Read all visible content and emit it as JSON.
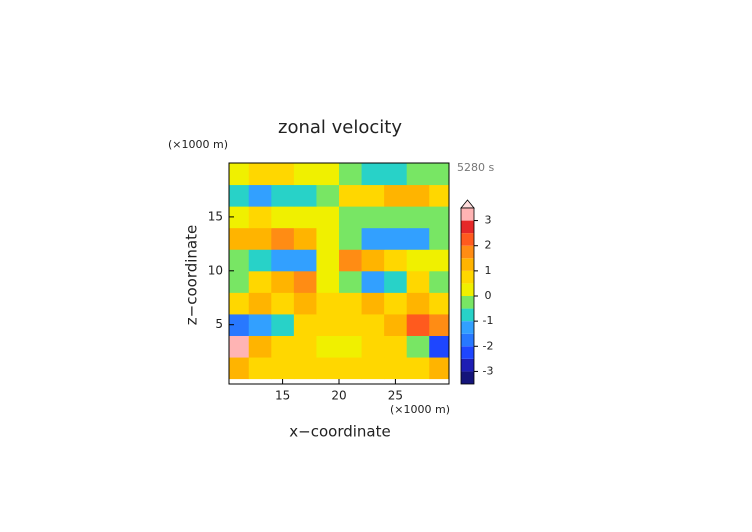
{
  "chart_data": {
    "type": "contour",
    "title": "zonal velocity",
    "subtitle": "5280 s",
    "x_label": "x−coordinate",
    "y_label": "z−coordinate",
    "x_unit": "(×1000 m)",
    "y_unit": "(×1000 m)",
    "xlim": [
      10.25,
      29.75
    ],
    "xticks": [
      15,
      20,
      25
    ],
    "ylim": [
      -0.5,
      20
    ],
    "yticks": [
      5,
      10,
      15
    ],
    "x": [
      11,
      13,
      15,
      17,
      19,
      21,
      23,
      25,
      27,
      29
    ],
    "y": [
      1,
      3,
      5,
      7,
      9,
      11,
      13,
      15,
      17,
      19
    ],
    "z": [
      [
        1,
        0.8,
        0.8,
        0.5,
        0.8,
        0.8,
        0.5,
        0.8,
        0.8,
        1
      ],
      [
        3,
        1.2,
        0.8,
        0.5,
        0.3,
        0.3,
        0.5,
        0.8,
        -0.5,
        -2.5
      ],
      [
        -1.8,
        -1.2,
        -0.8,
        0.5,
        0.8,
        0.8,
        0.5,
        1.2,
        2,
        1.5
      ],
      [
        0.8,
        1.2,
        0.8,
        1,
        0.5,
        0.5,
        1,
        0.8,
        1.2,
        0.8
      ],
      [
        -0.5,
        0.8,
        1.2,
        1.5,
        0.3,
        -0.3,
        -1.5,
        -0.8,
        0.8,
        -0.5
      ],
      [
        -0.3,
        -0.8,
        -1.2,
        -1.5,
        0.3,
        1.8,
        1.2,
        0.8,
        0.3,
        0.3
      ],
      [
        1,
        1.2,
        1.5,
        1.2,
        0.3,
        -0.5,
        -1.2,
        -1.5,
        -1.2,
        -0.5
      ],
      [
        0.3,
        0.5,
        0.3,
        0.2,
        0,
        -0.2,
        -0.3,
        -0.5,
        -0.3,
        -0.2
      ],
      [
        -0.8,
        -1.2,
        -1,
        -0.8,
        -0.3,
        0.5,
        0.8,
        1.2,
        1,
        0.8
      ],
      [
        0.3,
        0.5,
        0.5,
        0.3,
        0.2,
        -0.3,
        -0.8,
        -0.8,
        -0.5,
        -0.3
      ]
    ],
    "levels": [
      -3.5,
      -3,
      -2.5,
      -2,
      -1.5,
      -1,
      -0.5,
      0,
      0.5,
      1,
      1.5,
      2,
      2.5,
      3,
      3.5
    ],
    "colors": [
      "#14147a",
      "#1e1eb4",
      "#1e46ff",
      "#2878ff",
      "#32a0ff",
      "#28d2c8",
      "#78e664",
      "#f0f000",
      "#ffd700",
      "#ffb400",
      "#ff8c14",
      "#ff5a1e",
      "#e62828",
      "#ffb4b4"
    ],
    "colorbar_ticks": [
      -3,
      -2,
      -1,
      0,
      1,
      2,
      3
    ]
  }
}
